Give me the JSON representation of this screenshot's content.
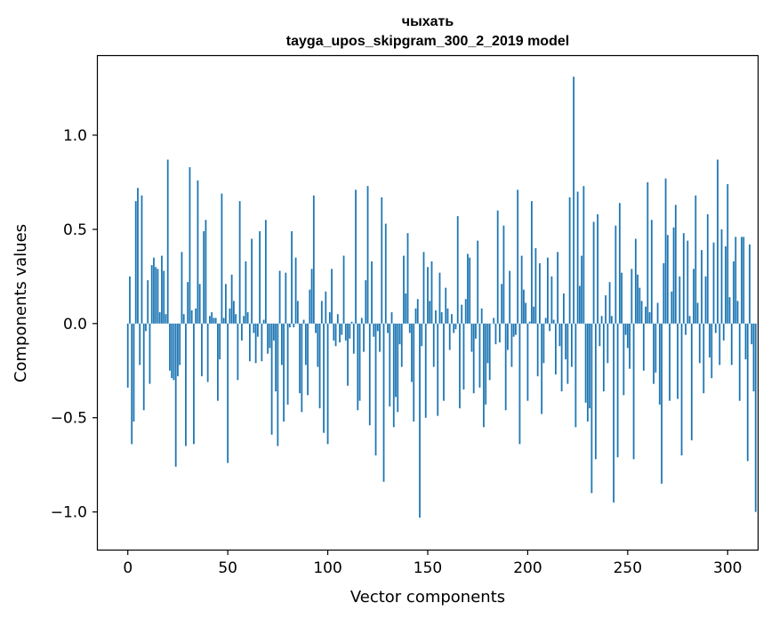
{
  "chart_data": {
    "type": "bar",
    "title": "чыхать",
    "subtitle": "tayga_upos_skipgram_300_2_2019 model",
    "xlabel": "Vector components",
    "ylabel": "Components values",
    "xlim": [
      -15,
      315
    ],
    "ylim": [
      -1.2,
      1.42
    ],
    "xticks": [
      0,
      50,
      100,
      150,
      200,
      250,
      300
    ],
    "yticks": [
      -1.0,
      -0.5,
      0.0,
      0.5,
      1.0
    ],
    "ytick_labels": [
      "−1.0",
      "−0.5",
      "0.0",
      "0.5",
      "1.0"
    ],
    "bar_color": "#1f77b4",
    "values": [
      -0.34,
      0.25,
      -0.64,
      -0.52,
      0.65,
      0.72,
      -0.22,
      0.68,
      -0.46,
      -0.04,
      0.23,
      -0.32,
      0.31,
      0.35,
      0.3,
      0.29,
      0.06,
      0.36,
      0.28,
      0.05,
      0.87,
      -0.25,
      -0.29,
      -0.3,
      -0.76,
      -0.28,
      -0.22,
      0.38,
      0.05,
      -0.65,
      0.22,
      0.83,
      0.07,
      -0.64,
      0.08,
      0.76,
      0.21,
      -0.28,
      0.49,
      0.55,
      -0.31,
      0.04,
      0.06,
      0.03,
      0.03,
      -0.41,
      -0.19,
      0.69,
      0.03,
      0.21,
      -0.74,
      0.08,
      0.26,
      0.12,
      0.05,
      -0.3,
      0.65,
      -0.09,
      0.04,
      0.33,
      0.06,
      -0.2,
      0.45,
      -0.05,
      -0.21,
      -0.07,
      0.49,
      -0.2,
      0.02,
      0.55,
      -0.16,
      -0.13,
      -0.59,
      -0.09,
      -0.36,
      -0.65,
      0.28,
      -0.22,
      -0.52,
      0.27,
      -0.43,
      -0.02,
      0.49,
      -0.02,
      0.35,
      0.12,
      -0.37,
      -0.47,
      0.02,
      -0.22,
      -0.38,
      0.18,
      0.29,
      0.68,
      -0.05,
      -0.23,
      -0.45,
      0.12,
      -0.58,
      0.17,
      -0.64,
      0.06,
      0.29,
      -0.09,
      -0.12,
      0.05,
      -0.1,
      -0.06,
      0.36,
      -0.09,
      -0.33,
      -0.08,
      0.01,
      -0.16,
      0.71,
      -0.46,
      -0.41,
      0.03,
      -0.15,
      0.23,
      0.73,
      -0.54,
      0.33,
      -0.07,
      -0.7,
      -0.04,
      -0.15,
      0.67,
      -0.84,
      0.53,
      -0.05,
      -0.44,
      0.06,
      -0.55,
      -0.39,
      -0.47,
      -0.11,
      -0.23,
      0.36,
      0.16,
      0.48,
      -0.05,
      -0.31,
      -0.52,
      0.08,
      0.13,
      -1.03,
      -0.12,
      0.38,
      -0.5,
      0.3,
      0.12,
      0.33,
      -0.23,
      0.07,
      -0.49,
      0.27,
      0.06,
      -0.41,
      0.19,
      0.08,
      -0.14,
      0.05,
      -0.05,
      -0.03,
      0.57,
      -0.45,
      0.1,
      -0.35,
      0.13,
      0.37,
      0.35,
      -0.15,
      -0.37,
      -0.08,
      0.44,
      -0.34,
      0.08,
      -0.55,
      -0.43,
      -0.21,
      -0.3,
      0.0,
      0.03,
      -0.11,
      0.6,
      -0.1,
      0.21,
      0.52,
      -0.46,
      -0.14,
      0.28,
      -0.23,
      -0.07,
      -0.06,
      0.71,
      -0.64,
      0.36,
      0.18,
      0.11,
      -0.41,
      0.01,
      0.65,
      0.09,
      0.4,
      -0.28,
      0.32,
      -0.48,
      -0.21,
      0.03,
      0.35,
      -0.04,
      0.25,
      0.02,
      -0.27,
      0.38,
      -0.12,
      -0.36,
      0.16,
      -0.19,
      -0.32,
      0.67,
      -0.23,
      1.31,
      -0.55,
      0.7,
      0.2,
      0.36,
      0.73,
      -0.42,
      -0.52,
      -0.45,
      -0.9,
      0.54,
      -0.72,
      0.58,
      -0.12,
      0.04,
      -0.36,
      0.15,
      -0.21,
      0.22,
      0.04,
      -0.95,
      0.52,
      -0.71,
      0.64,
      0.27,
      -0.38,
      -0.06,
      -0.13,
      -0.24,
      0.29,
      -0.72,
      0.45,
      0.26,
      0.19,
      0.12,
      -0.25,
      0.09,
      0.75,
      0.06,
      0.55,
      -0.32,
      -0.26,
      0.11,
      -0.43,
      -0.85,
      0.32,
      0.77,
      0.47,
      -0.41,
      0.17,
      0.51,
      0.63,
      -0.4,
      0.25,
      -0.7,
      0.48,
      -0.06,
      0.44,
      0.04,
      -0.62,
      0.29,
      0.68,
      0.11,
      -0.21,
      0.39,
      -0.37,
      0.25,
      0.58,
      -0.18,
      -0.29,
      0.43,
      -0.05,
      0.87,
      -0.22,
      0.5,
      -0.09,
      0.41,
      0.74,
      0.14,
      -0.22,
      0.33,
      0.46,
      0.12,
      -0.41,
      0.46,
      0.46,
      -0.19,
      -0.73,
      0.42,
      -0.11,
      -0.36,
      -1.0
    ]
  }
}
